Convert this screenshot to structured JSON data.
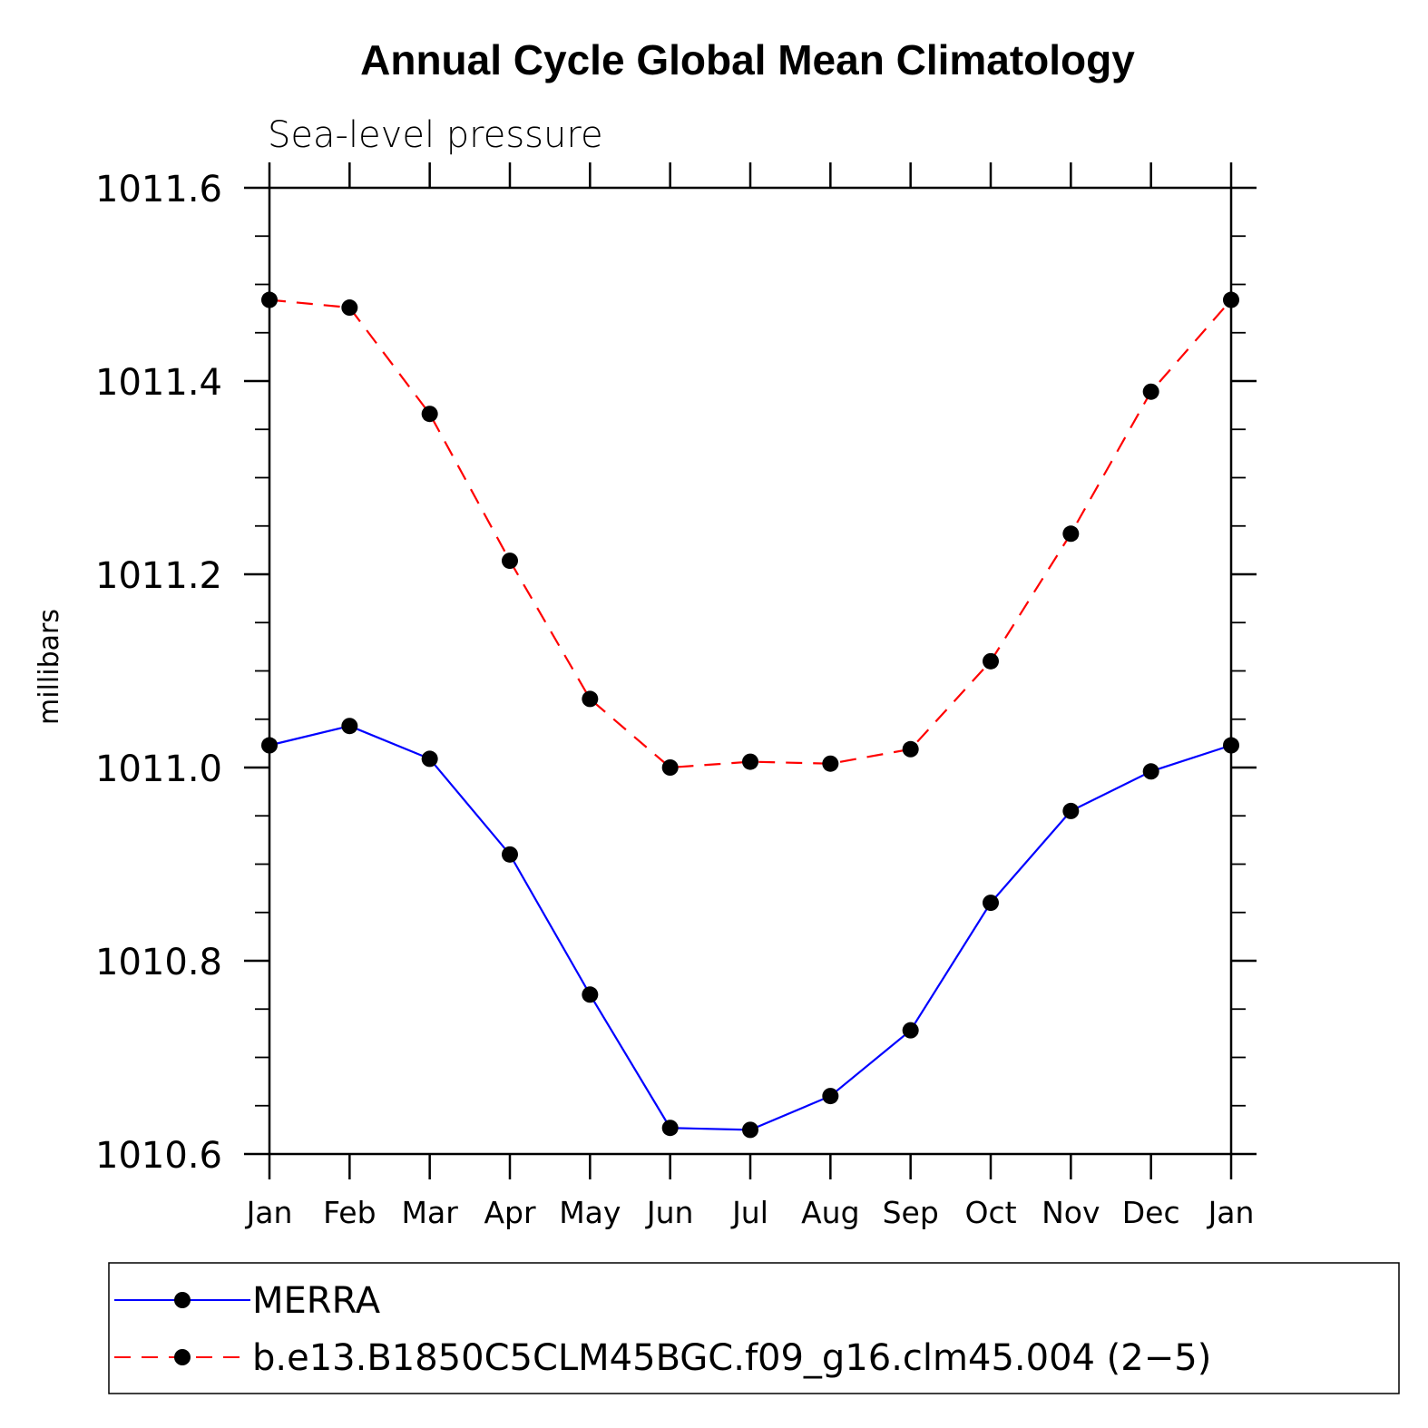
{
  "chart_data": {
    "type": "line",
    "title": "Annual Cycle Global Mean Climatology",
    "subtitle": "Sea-level pressure",
    "xlabel": "",
    "ylabel": "millibars",
    "ylim": [
      1010.6,
      1011.6
    ],
    "yticks": [
      "1011.6",
      "1011.4",
      "1011.2",
      "1011.0",
      "1010.8",
      "1010.6"
    ],
    "ytick_values": [
      1011.6,
      1011.4,
      1011.2,
      1011.0,
      1010.8,
      1010.6
    ],
    "categories": [
      "Jan",
      "Feb",
      "Mar",
      "Apr",
      "May",
      "Jun",
      "Jul",
      "Aug",
      "Sep",
      "Oct",
      "Nov",
      "Dec",
      "Jan"
    ],
    "series": [
      {
        "name": "MERRA",
        "color": "#0000ff",
        "dash": "solid",
        "values": [
          1011.023,
          1011.043,
          1011.009,
          1010.91,
          1010.765,
          1010.627,
          1010.625,
          1010.66,
          1010.728,
          1010.86,
          1010.955,
          1010.996,
          1011.023
        ]
      },
      {
        "name": "b.e13.B1850C5CLM45BGC.f09_g16.clm45.004 (2−5)",
        "color": "#ff0000",
        "dash": "dashed",
        "values": [
          1011.484,
          1011.476,
          1011.366,
          1011.214,
          1011.071,
          1011.0,
          1011.006,
          1011.004,
          1011.019,
          1011.11,
          1011.242,
          1011.389,
          1011.484
        ]
      }
    ],
    "legend": {
      "position": "bottom"
    }
  }
}
